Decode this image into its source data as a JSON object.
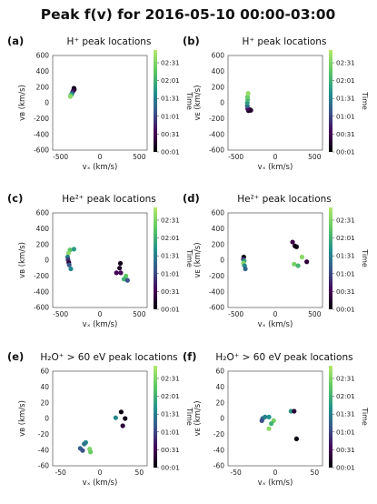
{
  "figure": {
    "suptitle": "Peak f(v) for 2016-05-10 00:00-03:00",
    "colorbar": {
      "label": "Time",
      "ticks": [
        "02:31",
        "02:01",
        "01:31",
        "01:01",
        "00:31",
        "00:01"
      ],
      "colormap": "viridis",
      "colors": [
        "#000004",
        "#440154",
        "#3b528b",
        "#21918c",
        "#5ec962",
        "#b6e86b"
      ]
    }
  },
  "chart_data": [
    {
      "panel": "(a)",
      "title": "H⁺ peak locations",
      "type": "scatter",
      "xlabel": "vₓ (km/s)",
      "ylabel": "vʙ (km/s)",
      "xlim": [
        -600,
        600
      ],
      "ylim": [
        -600,
        600
      ],
      "xticks": [
        "-500",
        "0",
        "500"
      ],
      "yticks": [
        "600",
        "400",
        "200",
        "0",
        "-200",
        "-400",
        "-600"
      ],
      "points": [
        {
          "x": -330,
          "y": 185,
          "t": 0.02
        },
        {
          "x": -325,
          "y": 170,
          "t": 0.06
        },
        {
          "x": -335,
          "y": 160,
          "t": 0.1
        },
        {
          "x": -345,
          "y": 140,
          "t": 0.22
        },
        {
          "x": -355,
          "y": 120,
          "t": 0.4
        },
        {
          "x": -360,
          "y": 105,
          "t": 0.55
        },
        {
          "x": -370,
          "y": 95,
          "t": 0.72
        },
        {
          "x": -375,
          "y": 80,
          "t": 0.9
        }
      ]
    },
    {
      "panel": "(b)",
      "title": "H⁺ peak locations",
      "type": "scatter",
      "xlabel": "vₓ (km/s)",
      "ylabel": "vᴇ (km/s)",
      "xlim": [
        -600,
        600
      ],
      "ylim": [
        -600,
        600
      ],
      "xticks": [
        "-500",
        "0",
        "500"
      ],
      "yticks": [
        "600",
        "400",
        "200",
        "0",
        "-200",
        "-400",
        "-600"
      ],
      "points": [
        {
          "x": -325,
          "y": -85,
          "t": 0.02
        },
        {
          "x": -340,
          "y": -100,
          "t": 0.06
        },
        {
          "x": -310,
          "y": -95,
          "t": 0.1
        },
        {
          "x": -350,
          "y": -75,
          "t": 0.2
        },
        {
          "x": -355,
          "y": -40,
          "t": 0.45
        },
        {
          "x": -355,
          "y": 0,
          "t": 0.62
        },
        {
          "x": -350,
          "y": 40,
          "t": 0.72
        },
        {
          "x": -352,
          "y": 75,
          "t": 0.82
        },
        {
          "x": -345,
          "y": 120,
          "t": 0.92
        }
      ]
    },
    {
      "panel": "(c)",
      "title": "He²⁺ peak locations",
      "type": "scatter",
      "xlabel": "vₓ (km/s)",
      "ylabel": "vʙ (km/s)",
      "xlim": [
        -600,
        600
      ],
      "ylim": [
        -600,
        600
      ],
      "xticks": [
        "-500",
        "0",
        "500"
      ],
      "yticks": [
        "600",
        "400",
        "200",
        "0",
        "-200",
        "-400",
        "-600"
      ],
      "points": [
        {
          "x": -380,
          "y": 130,
          "t": 0.78
        },
        {
          "x": -330,
          "y": 140,
          "t": 0.62
        },
        {
          "x": -400,
          "y": 90,
          "t": 0.9
        },
        {
          "x": -410,
          "y": 40,
          "t": 0.5
        },
        {
          "x": -405,
          "y": 5,
          "t": 0.3
        },
        {
          "x": -395,
          "y": -30,
          "t": 0.12
        },
        {
          "x": -390,
          "y": -60,
          "t": 0.4
        },
        {
          "x": -370,
          "y": -110,
          "t": 0.55
        },
        {
          "x": 260,
          "y": -40,
          "t": 0.04
        },
        {
          "x": 250,
          "y": -100,
          "t": 0.08
        },
        {
          "x": 210,
          "y": -160,
          "t": 0.18
        },
        {
          "x": 265,
          "y": -160,
          "t": 0.2
        },
        {
          "x": 330,
          "y": -200,
          "t": 0.8
        },
        {
          "x": 305,
          "y": -240,
          "t": 0.7
        },
        {
          "x": 350,
          "y": -255,
          "t": 0.38
        }
      ]
    },
    {
      "panel": "(d)",
      "title": "He²⁺ peak locations",
      "type": "scatter",
      "xlabel": "vₓ (km/s)",
      "ylabel": "vᴇ (km/s)",
      "xlim": [
        -600,
        600
      ],
      "ylim": [
        -600,
        600
      ],
      "xticks": [
        "-500",
        "0",
        "500"
      ],
      "yticks": [
        "600",
        "400",
        "200",
        "0",
        "-200",
        "-400",
        "-600"
      ],
      "points": [
        {
          "x": -400,
          "y": 40,
          "t": 0.02
        },
        {
          "x": -405,
          "y": 10,
          "t": 0.3
        },
        {
          "x": -395,
          "y": -10,
          "t": 0.65
        },
        {
          "x": -405,
          "y": -40,
          "t": 0.9
        },
        {
          "x": -390,
          "y": -70,
          "t": 0.55
        },
        {
          "x": -380,
          "y": -110,
          "t": 0.45
        },
        {
          "x": 220,
          "y": 230,
          "t": 0.15
        },
        {
          "x": 250,
          "y": 180,
          "t": 0.05
        },
        {
          "x": 270,
          "y": 170,
          "t": 0.02
        },
        {
          "x": 340,
          "y": 40,
          "t": 0.9
        },
        {
          "x": 240,
          "y": -50,
          "t": 0.85
        },
        {
          "x": 290,
          "y": -70,
          "t": 0.72
        },
        {
          "x": 400,
          "y": -20,
          "t": 0.12
        }
      ]
    },
    {
      "panel": "(e)",
      "title": "H₂O⁺ > 60 eV peak locations",
      "type": "scatter",
      "xlabel": "vₓ (km/s)",
      "ylabel": "vʙ (km/s)",
      "xlim": [
        -60,
        60
      ],
      "ylim": [
        -60,
        70
      ],
      "xticks": [
        "-50",
        "0",
        "50"
      ],
      "yticks": [
        "60",
        "40",
        "20",
        "0",
        "-20",
        "-40",
        "-60"
      ],
      "points": [
        {
          "x": 27,
          "y": 14,
          "t": 0.02
        },
        {
          "x": 20,
          "y": 6,
          "t": 0.55
        },
        {
          "x": 32,
          "y": 5,
          "t": 0.04
        },
        {
          "x": 29,
          "y": -5,
          "t": 0.12
        },
        {
          "x": -18,
          "y": -28,
          "t": 0.55
        },
        {
          "x": -20,
          "y": -30,
          "t": 0.48
        },
        {
          "x": -25,
          "y": -36,
          "t": 0.42
        },
        {
          "x": -22,
          "y": -39,
          "t": 0.38
        },
        {
          "x": -13,
          "y": -37,
          "t": 0.88
        },
        {
          "x": -12,
          "y": -41,
          "t": 0.82
        }
      ]
    },
    {
      "panel": "(f)",
      "title": "H₂O⁺ > 60 eV peak locations",
      "type": "scatter",
      "xlabel": "vₓ (km/s)",
      "ylabel": "vᴇ (km/s)",
      "xlim": [
        -60,
        60
      ],
      "ylim": [
        -60,
        70
      ],
      "xticks": [
        "-50",
        "0",
        "50"
      ],
      "yticks": [
        "60",
        "40",
        "20",
        "0",
        "-20",
        "-40",
        "-60"
      ],
      "points": [
        {
          "x": 20,
          "y": 15,
          "t": 0.62
        },
        {
          "x": 24,
          "y": 15,
          "t": 0.12
        },
        {
          "x": 27,
          "y": -23,
          "t": 0.02
        },
        {
          "x": -16,
          "y": 5,
          "t": 0.45
        },
        {
          "x": -17,
          "y": 2,
          "t": 0.38
        },
        {
          "x": -13,
          "y": 7,
          "t": 0.52
        },
        {
          "x": -8,
          "y": 7,
          "t": 0.58
        },
        {
          "x": -2,
          "y": 2,
          "t": 0.85
        },
        {
          "x": -5,
          "y": -2,
          "t": 0.7
        },
        {
          "x": -8,
          "y": -9,
          "t": 0.9
        }
      ]
    }
  ]
}
